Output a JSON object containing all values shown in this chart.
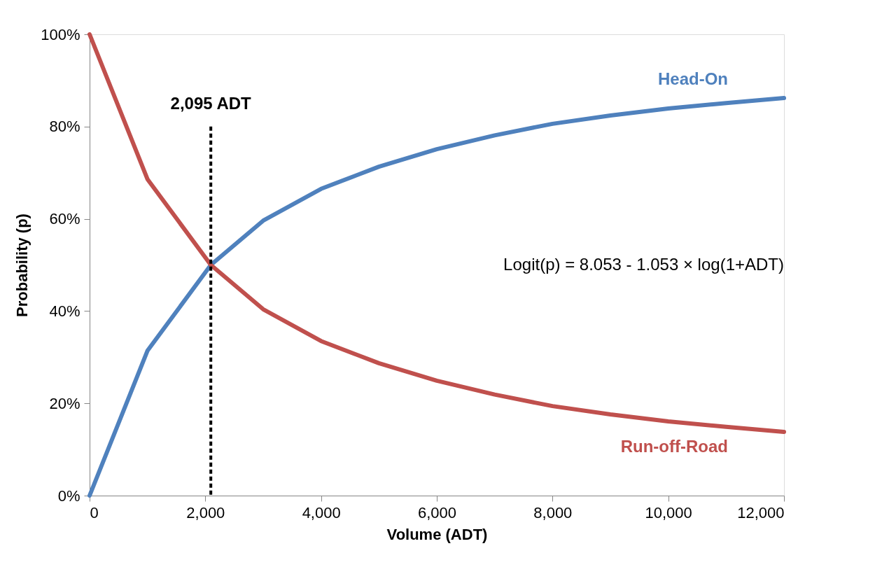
{
  "chart_data": {
    "type": "line",
    "xlabel": "Volume (ADT)",
    "ylabel": "Probability (p)",
    "x": [
      0,
      1000,
      2095,
      3000,
      4000,
      5000,
      6000,
      7000,
      8000,
      9000,
      10000,
      11000,
      12000
    ],
    "series": [
      {
        "name": "Head-On",
        "color": "#4f81bd",
        "values": [
          0,
          31.4,
          50,
          59.6,
          66.5,
          71.3,
          75.1,
          78.1,
          80.6,
          82.4,
          83.9,
          85.1,
          86.2
        ]
      },
      {
        "name": "Run-off-Road",
        "color": "#c0504d",
        "values": [
          100,
          68.6,
          50,
          40.4,
          33.5,
          28.7,
          24.9,
          21.9,
          19.4,
          17.6,
          16.1,
          14.9,
          13.8
        ]
      }
    ],
    "xlim": [
      0,
      12000
    ],
    "xticks": [
      0,
      {
        "value": 2000,
        "label": "2,000"
      },
      {
        "value": 4000,
        "label": "4,000"
      },
      {
        "value": 6000,
        "label": "6,000"
      },
      {
        "value": 8000,
        "label": "8,000"
      },
      {
        "value": 10000,
        "label": "10,000"
      },
      {
        "value": 12000,
        "label": "12,000"
      }
    ],
    "ylim": [
      0,
      100
    ],
    "yticks": [
      {
        "value": 0,
        "label": "0%"
      },
      {
        "value": 20,
        "label": "20%"
      },
      {
        "value": 40,
        "label": "40%"
      },
      {
        "value": 60,
        "label": "60%"
      },
      {
        "value": 80,
        "label": "80%"
      },
      {
        "value": 100,
        "label": "100%"
      }
    ],
    "ref_lines": [
      {
        "axis": "x",
        "value": 2095,
        "label": "2,095 ADT",
        "color": "#000000",
        "line_style": "dashed"
      }
    ],
    "annotations": [
      "Logit(p) = 8.053 - 1.053 × log(1+ADT)"
    ],
    "marker": "none",
    "line_style": "solid"
  }
}
